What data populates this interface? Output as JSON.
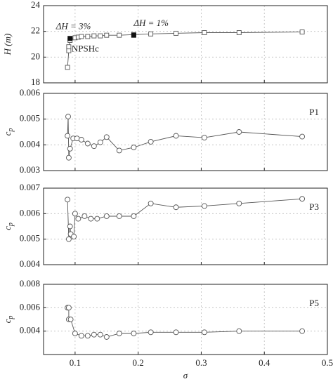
{
  "chart_data": [
    {
      "type": "line",
      "ylabel": "H (m)",
      "marker": "square",
      "x": [
        0.088,
        0.09,
        0.09,
        0.092,
        0.1,
        0.105,
        0.11,
        0.12,
        0.13,
        0.14,
        0.15,
        0.17,
        0.193,
        0.22,
        0.26,
        0.305,
        0.36,
        0.46
      ],
      "values": [
        19.2,
        20.5,
        20.8,
        21.3,
        21.5,
        21.55,
        21.6,
        21.6,
        21.65,
        21.65,
        21.7,
        21.7,
        21.75,
        21.8,
        21.85,
        21.9,
        21.9,
        21.95
      ],
      "annotations": [
        {
          "text": "ΔH = 3%",
          "x": 0.092,
          "y": 21.45
        },
        {
          "text": "ΔH = 1%",
          "x": 0.193,
          "y": 21.7
        },
        {
          "text": "NPSHc"
        }
      ],
      "xlim": [
        0.05,
        0.5
      ],
      "xticks": [
        0.1,
        0.2,
        0.3,
        0.4,
        0.5
      ],
      "ylim": [
        18,
        24
      ],
      "yticks": [
        18,
        20,
        22,
        24
      ],
      "grid": true
    },
    {
      "type": "line",
      "ylabel": "c",
      "ylabel_sub": "p",
      "label": "P1",
      "marker": "circle",
      "x": [
        0.088,
        0.089,
        0.09,
        0.092,
        0.097,
        0.103,
        0.11,
        0.12,
        0.13,
        0.14,
        0.15,
        0.17,
        0.193,
        0.22,
        0.26,
        0.305,
        0.36,
        0.46
      ],
      "values": [
        0.00435,
        0.0051,
        0.0035,
        0.00385,
        0.00425,
        0.00425,
        0.0042,
        0.00405,
        0.00395,
        0.0041,
        0.0043,
        0.00378,
        0.0039,
        0.00412,
        0.00435,
        0.00428,
        0.0045,
        0.00432
      ],
      "xlim": [
        0.05,
        0.5
      ],
      "xticks": [
        0.1,
        0.2,
        0.3,
        0.4,
        0.5
      ],
      "ylim": [
        0.003,
        0.006
      ],
      "yticks": [
        0.003,
        0.004,
        0.005,
        0.006
      ],
      "grid": true
    },
    {
      "type": "line",
      "ylabel": "c",
      "ylabel_sub": "p",
      "label": "P3",
      "marker": "circle",
      "x": [
        0.088,
        0.09,
        0.092,
        0.093,
        0.098,
        0.1,
        0.105,
        0.115,
        0.125,
        0.135,
        0.15,
        0.17,
        0.193,
        0.22,
        0.26,
        0.305,
        0.36,
        0.46
      ],
      "values": [
        0.00655,
        0.005,
        0.0055,
        0.0052,
        0.0051,
        0.006,
        0.0058,
        0.0059,
        0.0058,
        0.0058,
        0.0059,
        0.0059,
        0.0059,
        0.0064,
        0.00625,
        0.0063,
        0.0064,
        0.00658
      ],
      "xlim": [
        0.05,
        0.5
      ],
      "xticks": [
        0.1,
        0.2,
        0.3,
        0.4,
        0.5
      ],
      "ylim": [
        0.004,
        0.007
      ],
      "yticks": [
        0.004,
        0.005,
        0.006,
        0.007
      ],
      "grid": true
    },
    {
      "type": "line",
      "ylabel": "c",
      "ylabel_sub": "p",
      "label": "P5",
      "marker": "circle",
      "xlabel": "σ",
      "x": [
        0.088,
        0.09,
        0.09,
        0.093,
        0.1,
        0.11,
        0.12,
        0.13,
        0.14,
        0.15,
        0.17,
        0.193,
        0.22,
        0.26,
        0.305,
        0.36,
        0.46
      ],
      "values": [
        0.006,
        0.006,
        0.005,
        0.005,
        0.0038,
        0.0036,
        0.0036,
        0.0037,
        0.0037,
        0.0035,
        0.0038,
        0.0038,
        0.0039,
        0.0039,
        0.0039,
        0.004,
        0.004
      ],
      "xlim": [
        0.05,
        0.5
      ],
      "xticks": [
        0.1,
        0.2,
        0.3,
        0.4,
        0.5
      ],
      "ylim": [
        0.002,
        0.008
      ],
      "yticks": [
        0.004,
        0.006,
        0.008
      ],
      "grid": true
    }
  ]
}
